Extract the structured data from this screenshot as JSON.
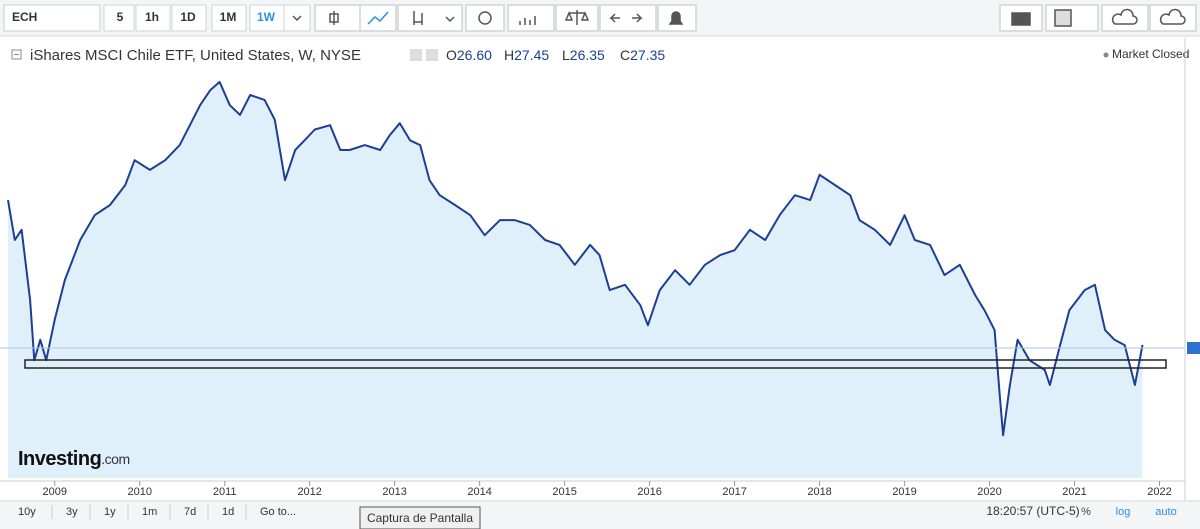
{
  "toolbar": {
    "symbol": "ECH",
    "intervals": [
      "5",
      "1h",
      "1D",
      "1M",
      "1W"
    ],
    "active": 4
  },
  "header": {
    "title": "iShares MSCI Chile ETF, United States, W, NYSE",
    "ohlc": [
      {
        "label": "O",
        "value": "26.60"
      },
      {
        "label": "H",
        "value": "27.45"
      },
      {
        "label": "L",
        "value": "26.35"
      },
      {
        "label": "C",
        "value": "27.35"
      }
    ],
    "status": "Market Closed"
  },
  "logo": {
    "main": "Investing",
    "suffix": ".com"
  },
  "footer": {
    "ranges": [
      "10y",
      "3y",
      "1y",
      "1m",
      "7d",
      "1d",
      "Go to..."
    ],
    "time": "18:20:57 (UTC-5)",
    "options": [
      "%",
      "log",
      "auto"
    ],
    "tooltip": "Captura de Pantalla"
  },
  "chart_data": {
    "type": "area",
    "color": "#1c3f94",
    "fill": "#dff0fb",
    "x": [
      2008.45,
      2008.53,
      2008.61,
      2008.71,
      2008.76,
      2008.83,
      2008.9,
      2009.0,
      2009.12,
      2009.3,
      2009.47,
      2009.65,
      2009.83,
      2009.94,
      2010.12,
      2010.3,
      2010.47,
      2010.59,
      2010.71,
      2010.83,
      2010.94,
      2011.06,
      2011.18,
      2011.3,
      2011.47,
      2011.59,
      2011.71,
      2011.83,
      2011.94,
      2012.06,
      2012.24,
      2012.36,
      2012.47,
      2012.65,
      2012.83,
      2012.94,
      2013.06,
      2013.18,
      2013.3,
      2013.41,
      2013.53,
      2013.71,
      2013.89,
      2014.06,
      2014.24,
      2014.41,
      2014.59,
      2014.77,
      2014.94,
      2015.12,
      2015.3,
      2015.41,
      2015.53,
      2015.71,
      2015.89,
      2015.98,
      2016.12,
      2016.3,
      2016.47,
      2016.65,
      2016.83,
      2017.0,
      2017.18,
      2017.36,
      2017.53,
      2017.71,
      2017.89,
      2018.0,
      2018.18,
      2018.36,
      2018.47,
      2018.65,
      2018.83,
      2019.0,
      2019.12,
      2019.3,
      2019.47,
      2019.65,
      2019.83,
      2019.94,
      2020.06,
      2020.12,
      2020.16,
      2020.24,
      2020.33,
      2020.47,
      2020.65,
      2020.71,
      2020.83,
      2020.94,
      2021.12,
      2021.24,
      2021.36,
      2021.47,
      2021.59,
      2021.71,
      2021.8
    ],
    "values": [
      57.1,
      48.9,
      51.0,
      36.6,
      24.2,
      28.4,
      24.2,
      32.5,
      40.7,
      48.9,
      54.0,
      56.1,
      60.2,
      65.3,
      63.3,
      65.3,
      68.4,
      72.5,
      76.6,
      79.7,
      81.4,
      76.6,
      74.6,
      78.7,
      77.7,
      73.6,
      61.2,
      67.4,
      69.4,
      71.6,
      72.5,
      67.4,
      67.4,
      68.4,
      67.4,
      70.4,
      72.9,
      69.4,
      68.4,
      61.2,
      58.1,
      56.1,
      54.0,
      49.9,
      53.0,
      53.0,
      52.0,
      48.9,
      47.9,
      43.8,
      47.9,
      45.8,
      38.6,
      39.7,
      35.5,
      31.4,
      38.6,
      42.7,
      39.7,
      43.8,
      45.8,
      46.8,
      51.0,
      48.9,
      54.0,
      58.1,
      57.1,
      62.3,
      60.2,
      58.1,
      53.0,
      51.0,
      47.9,
      54.0,
      48.9,
      47.9,
      41.7,
      43.8,
      37.6,
      34.5,
      30.4,
      17.1,
      8.8,
      19.1,
      28.4,
      24.2,
      22.2,
      19.1,
      27.3,
      34.5,
      38.6,
      39.7,
      30.4,
      28.4,
      27.3,
      19.1,
      27.35
    ],
    "xlim": [
      2008.45,
      2022.3
    ],
    "ylim": [
      0,
      90
    ],
    "xticks": [
      2009,
      2010,
      2011,
      2012,
      2013,
      2014,
      2015,
      2016,
      2017,
      2018,
      2019,
      2020,
      2021,
      2022
    ]
  }
}
